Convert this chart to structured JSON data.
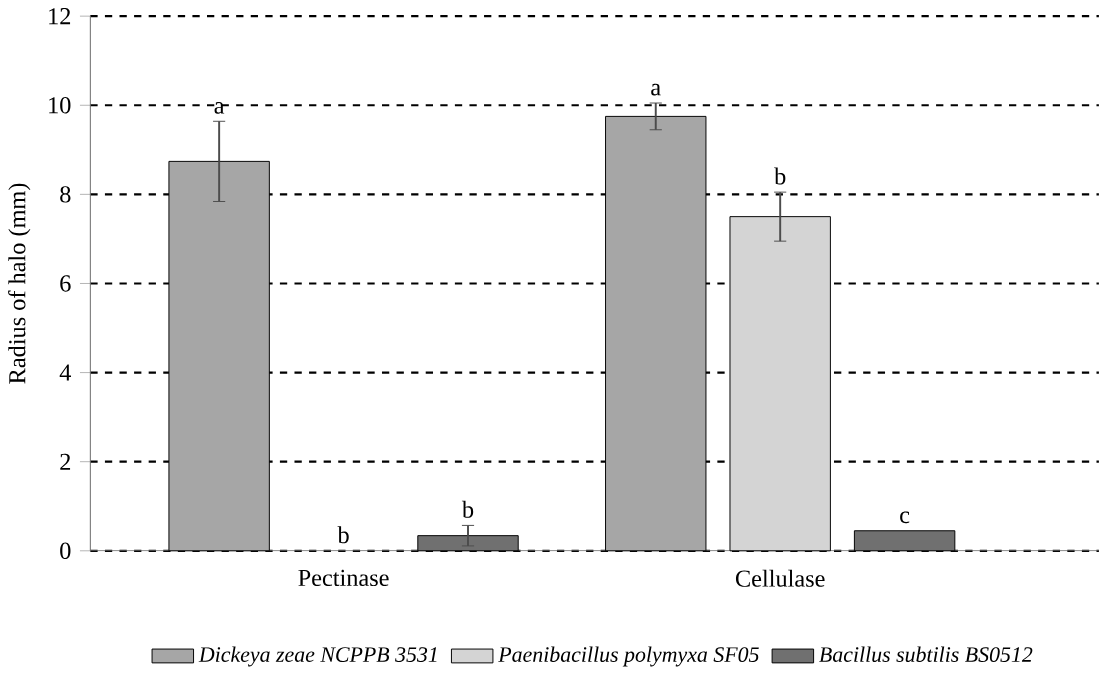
{
  "chart_data": {
    "type": "bar",
    "ylabel": "Radius of halo (mm)",
    "categories": [
      "Pectinase",
      "Cellulase"
    ],
    "series": [
      {
        "name": "*Dickeya zeae NCPPB 3531*",
        "color": "#a6a6a6",
        "values": [
          8.74,
          9.75
        ],
        "errors": [
          0.9,
          0.3
        ]
      },
      {
        "name": "*Paenibacillus polymyxa SF05*",
        "color": "#d4d4d4",
        "values": [
          0,
          7.5
        ],
        "errors": [
          null,
          0.55
        ]
      },
      {
        "name": "*Bacillus subtilis BS0512*",
        "color": "#707070",
        "values": [
          0.34,
          0.45
        ],
        "errors": [
          0.23,
          null
        ]
      }
    ],
    "ylim": [
      0,
      12
    ],
    "yticks": [
      0,
      2,
      4,
      6,
      8,
      10,
      12
    ],
    "grid": "y",
    "legend": "bottom",
    "annotations": [
      "a",
      "b",
      "b",
      "a",
      "b",
      "c"
    ]
  }
}
